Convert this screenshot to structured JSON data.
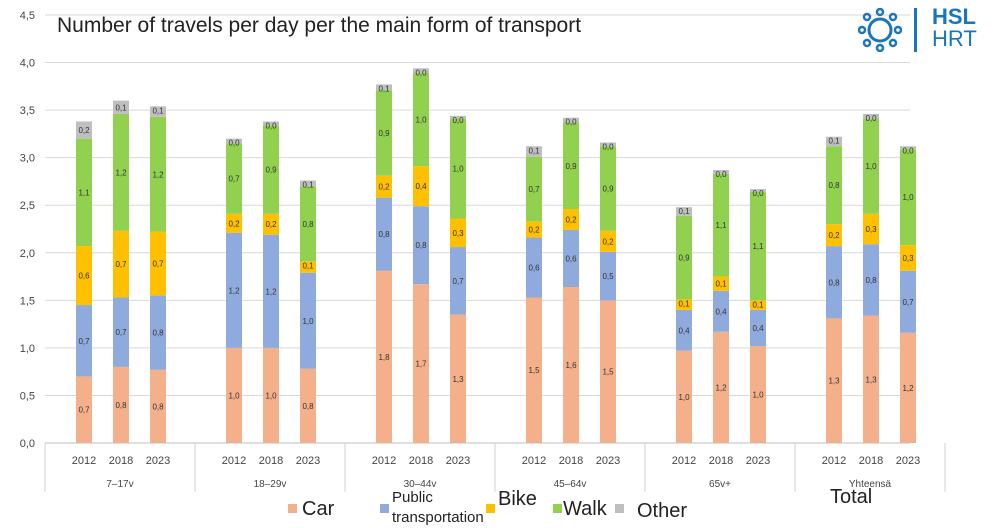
{
  "title": "Number of travels per day per the main form of transport",
  "logo": {
    "line1": "HSL",
    "line2": "HRT"
  },
  "chart_data": {
    "type": "bar",
    "stacked": true,
    "ylim": [
      0,
      4.5
    ],
    "yticks": [
      "0,0",
      "0,5",
      "1,0",
      "1,5",
      "2,0",
      "2,5",
      "3,0",
      "3,5",
      "4,0",
      "4,5"
    ],
    "ytick_values": [
      0,
      0.5,
      1,
      1.5,
      2,
      2.5,
      3,
      3.5,
      4,
      4.5
    ],
    "grid": true,
    "legend_position": "bottom",
    "groups": [
      {
        "label": "7–17v",
        "years": [
          "2012",
          "2018",
          "2023"
        ]
      },
      {
        "label": "18–29v",
        "years": [
          "2012",
          "2018",
          "2023"
        ]
      },
      {
        "label": "30–44v",
        "years": [
          "2012",
          "2018",
          "2023"
        ]
      },
      {
        "label": "45–64v",
        "years": [
          "2012",
          "2018",
          "2023"
        ]
      },
      {
        "label": "65v+",
        "years": [
          "2012",
          "2018",
          "2023"
        ]
      },
      {
        "label": "Yhteensä",
        "years": [
          "2012",
          "2018",
          "2023"
        ]
      }
    ],
    "series": [
      {
        "name": "Car",
        "color": "#f4b08a",
        "values": [
          0.7,
          0.8,
          0.77,
          1.0,
          1.0,
          0.78,
          1.81,
          1.67,
          1.35,
          1.53,
          1.64,
          1.5,
          0.97,
          1.17,
          1.02,
          1.31,
          1.34,
          1.16
        ],
        "labels": [
          "0,7",
          "0,8",
          "0,8",
          "1,0",
          "1,0",
          "0,8",
          "1,8",
          "1,7",
          "1,3",
          "1,5",
          "1,6",
          "1,5",
          "1,0",
          "1,2",
          "1,0",
          "1,3",
          "1,3",
          "1,2"
        ]
      },
      {
        "name": "Public transportation",
        "color": "#8faadc",
        "values": [
          0.75,
          0.73,
          0.78,
          1.21,
          1.19,
          1.01,
          0.77,
          0.82,
          0.71,
          0.63,
          0.6,
          0.51,
          0.43,
          0.43,
          0.38,
          0.76,
          0.75,
          0.65
        ],
        "labels": [
          "0,7",
          "0,7",
          "0,8",
          "1,2",
          "1,2",
          "1,0",
          "0,8",
          "0,8",
          "0,7",
          "0,6",
          "0,6",
          "0,5",
          "0,4",
          "0,4",
          "0,4",
          "0,8",
          "0,8",
          "0,7"
        ]
      },
      {
        "name": "Bike",
        "color": "#ffc000",
        "values": [
          0.62,
          0.7,
          0.67,
          0.2,
          0.22,
          0.12,
          0.23,
          0.42,
          0.3,
          0.17,
          0.22,
          0.22,
          0.11,
          0.15,
          0.1,
          0.23,
          0.32,
          0.27
        ],
        "labels": [
          "0,6",
          "0,7",
          "0,7",
          "0,2",
          "0,2",
          "0,1",
          "0,2",
          "0,4",
          "0,3",
          "0,2",
          "0,2",
          "0,2",
          "0,1",
          "0,1",
          "0,1",
          "0,2",
          "0,3",
          "0,3"
        ]
      },
      {
        "name": "Walk",
        "color": "#92d050",
        "values": [
          1.13,
          1.23,
          1.21,
          0.74,
          0.93,
          0.79,
          0.9,
          0.98,
          1.05,
          0.68,
          0.91,
          0.89,
          0.88,
          1.08,
          1.14,
          0.82,
          1.0,
          1.01
        ],
        "labels": [
          "1,1",
          "1,2",
          "1,2",
          "0,7",
          "0,9",
          "0,8",
          "0,9",
          "1,0",
          "1,0",
          "0,7",
          "0,9",
          "0,9",
          "0,9",
          "1,1",
          "1,1",
          "0,8",
          "1,0",
          "1,0"
        ]
      },
      {
        "name": "Other",
        "color": "#bfbfbf",
        "values": [
          0.18,
          0.14,
          0.11,
          0.05,
          0.04,
          0.06,
          0.06,
          0.05,
          0.03,
          0.11,
          0.05,
          0.04,
          0.09,
          0.04,
          0.03,
          0.1,
          0.05,
          0.03
        ],
        "labels": [
          "0,2",
          "0,1",
          "0,1",
          "0,0",
          "0,0",
          "0,1",
          "0,1",
          "0,0",
          "0,0",
          "0,1",
          "0,0",
          "0,0",
          "0,1",
          "0,0",
          "0,0",
          "0,1",
          "0,0",
          "0,0"
        ]
      }
    ]
  },
  "legend": [
    {
      "label": "Car",
      "color": "#f4b08a"
    },
    {
      "label": "Public transportation",
      "color": "#8faadc"
    },
    {
      "label": "Bike",
      "color": "#ffc000"
    },
    {
      "label": "Walk",
      "color": "#92d050"
    },
    {
      "label": "Other",
      "color": "#bfbfbf"
    }
  ],
  "total_label": "Total"
}
